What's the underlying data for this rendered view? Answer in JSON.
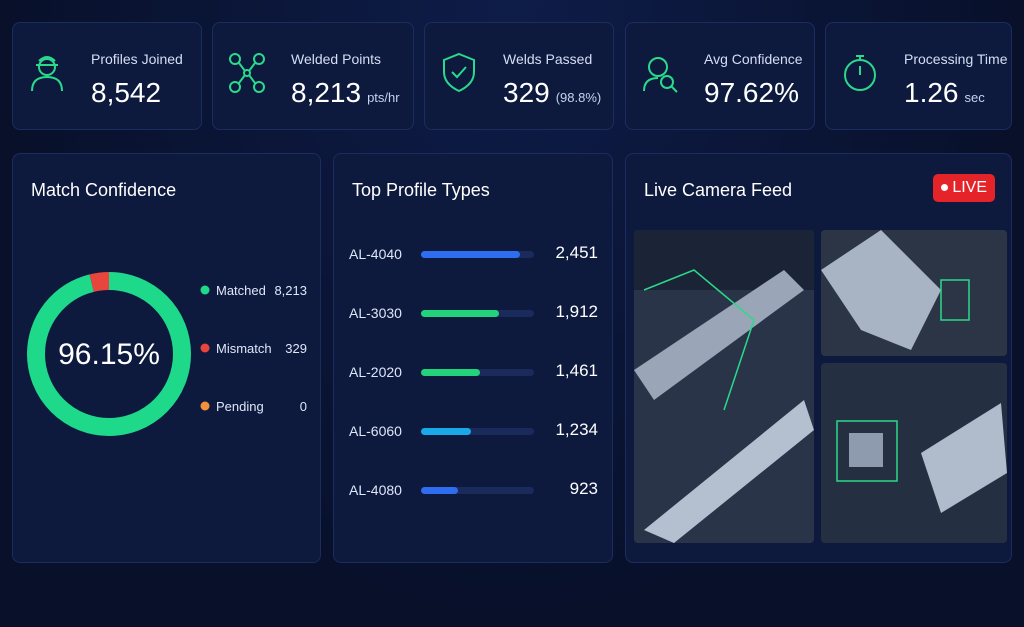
{
  "kpis": [
    {
      "label": "Profiles Joined",
      "value": "8,542"
    },
    {
      "label": "Welded Points",
      "value": "8,213",
      "unit": "pts/hr"
    },
    {
      "label": "Welds Passed",
      "value": "329",
      "unit": "(98.8%)"
    },
    {
      "label": "Avg Confidence",
      "value": "97.62%"
    },
    {
      "label": "Processing Time",
      "value": "1.26",
      "unit": "sec"
    }
  ],
  "match_confidence": {
    "title": "Match Confidence",
    "center_label": "96.15%",
    "legend": [
      {
        "name": "Matched",
        "value": {
          "value": 8213,
          "label": "8,213"
        },
        "color": "#1ed98a"
      },
      {
        "name": "Mismatch",
        "value": 329,
        "color": "#e8453c"
      },
      {
        "name": "Pending",
        "value": 0,
        "color": "#f0913c"
      }
    ]
  },
  "top_profiles": {
    "title": "Top Profile Types",
    "rows": [
      {
        "name": "AL-4040",
        "value": {
          "value": 2451,
          "label": "2,451"
        },
        "color": "#2f6df0"
      },
      {
        "name": "AL-3030",
        "value": {
          "value": 1912,
          "label": "1,912"
        },
        "color": "#22d37c"
      },
      {
        "name": "AL-2020",
        "value": {
          "value": 1461,
          "label": "1,461"
        },
        "color": "#22d37c"
      },
      {
        "name": "AL-6060",
        "value": {
          "value": 1234,
          "label": "1,234"
        },
        "color": "#1aa8e8"
      },
      {
        "name": "AL-4080",
        "value": 923,
        "color": "#2f6df0"
      }
    ]
  },
  "camera": {
    "title": "Live Camera Feed",
    "badge": "LIVE"
  }
}
